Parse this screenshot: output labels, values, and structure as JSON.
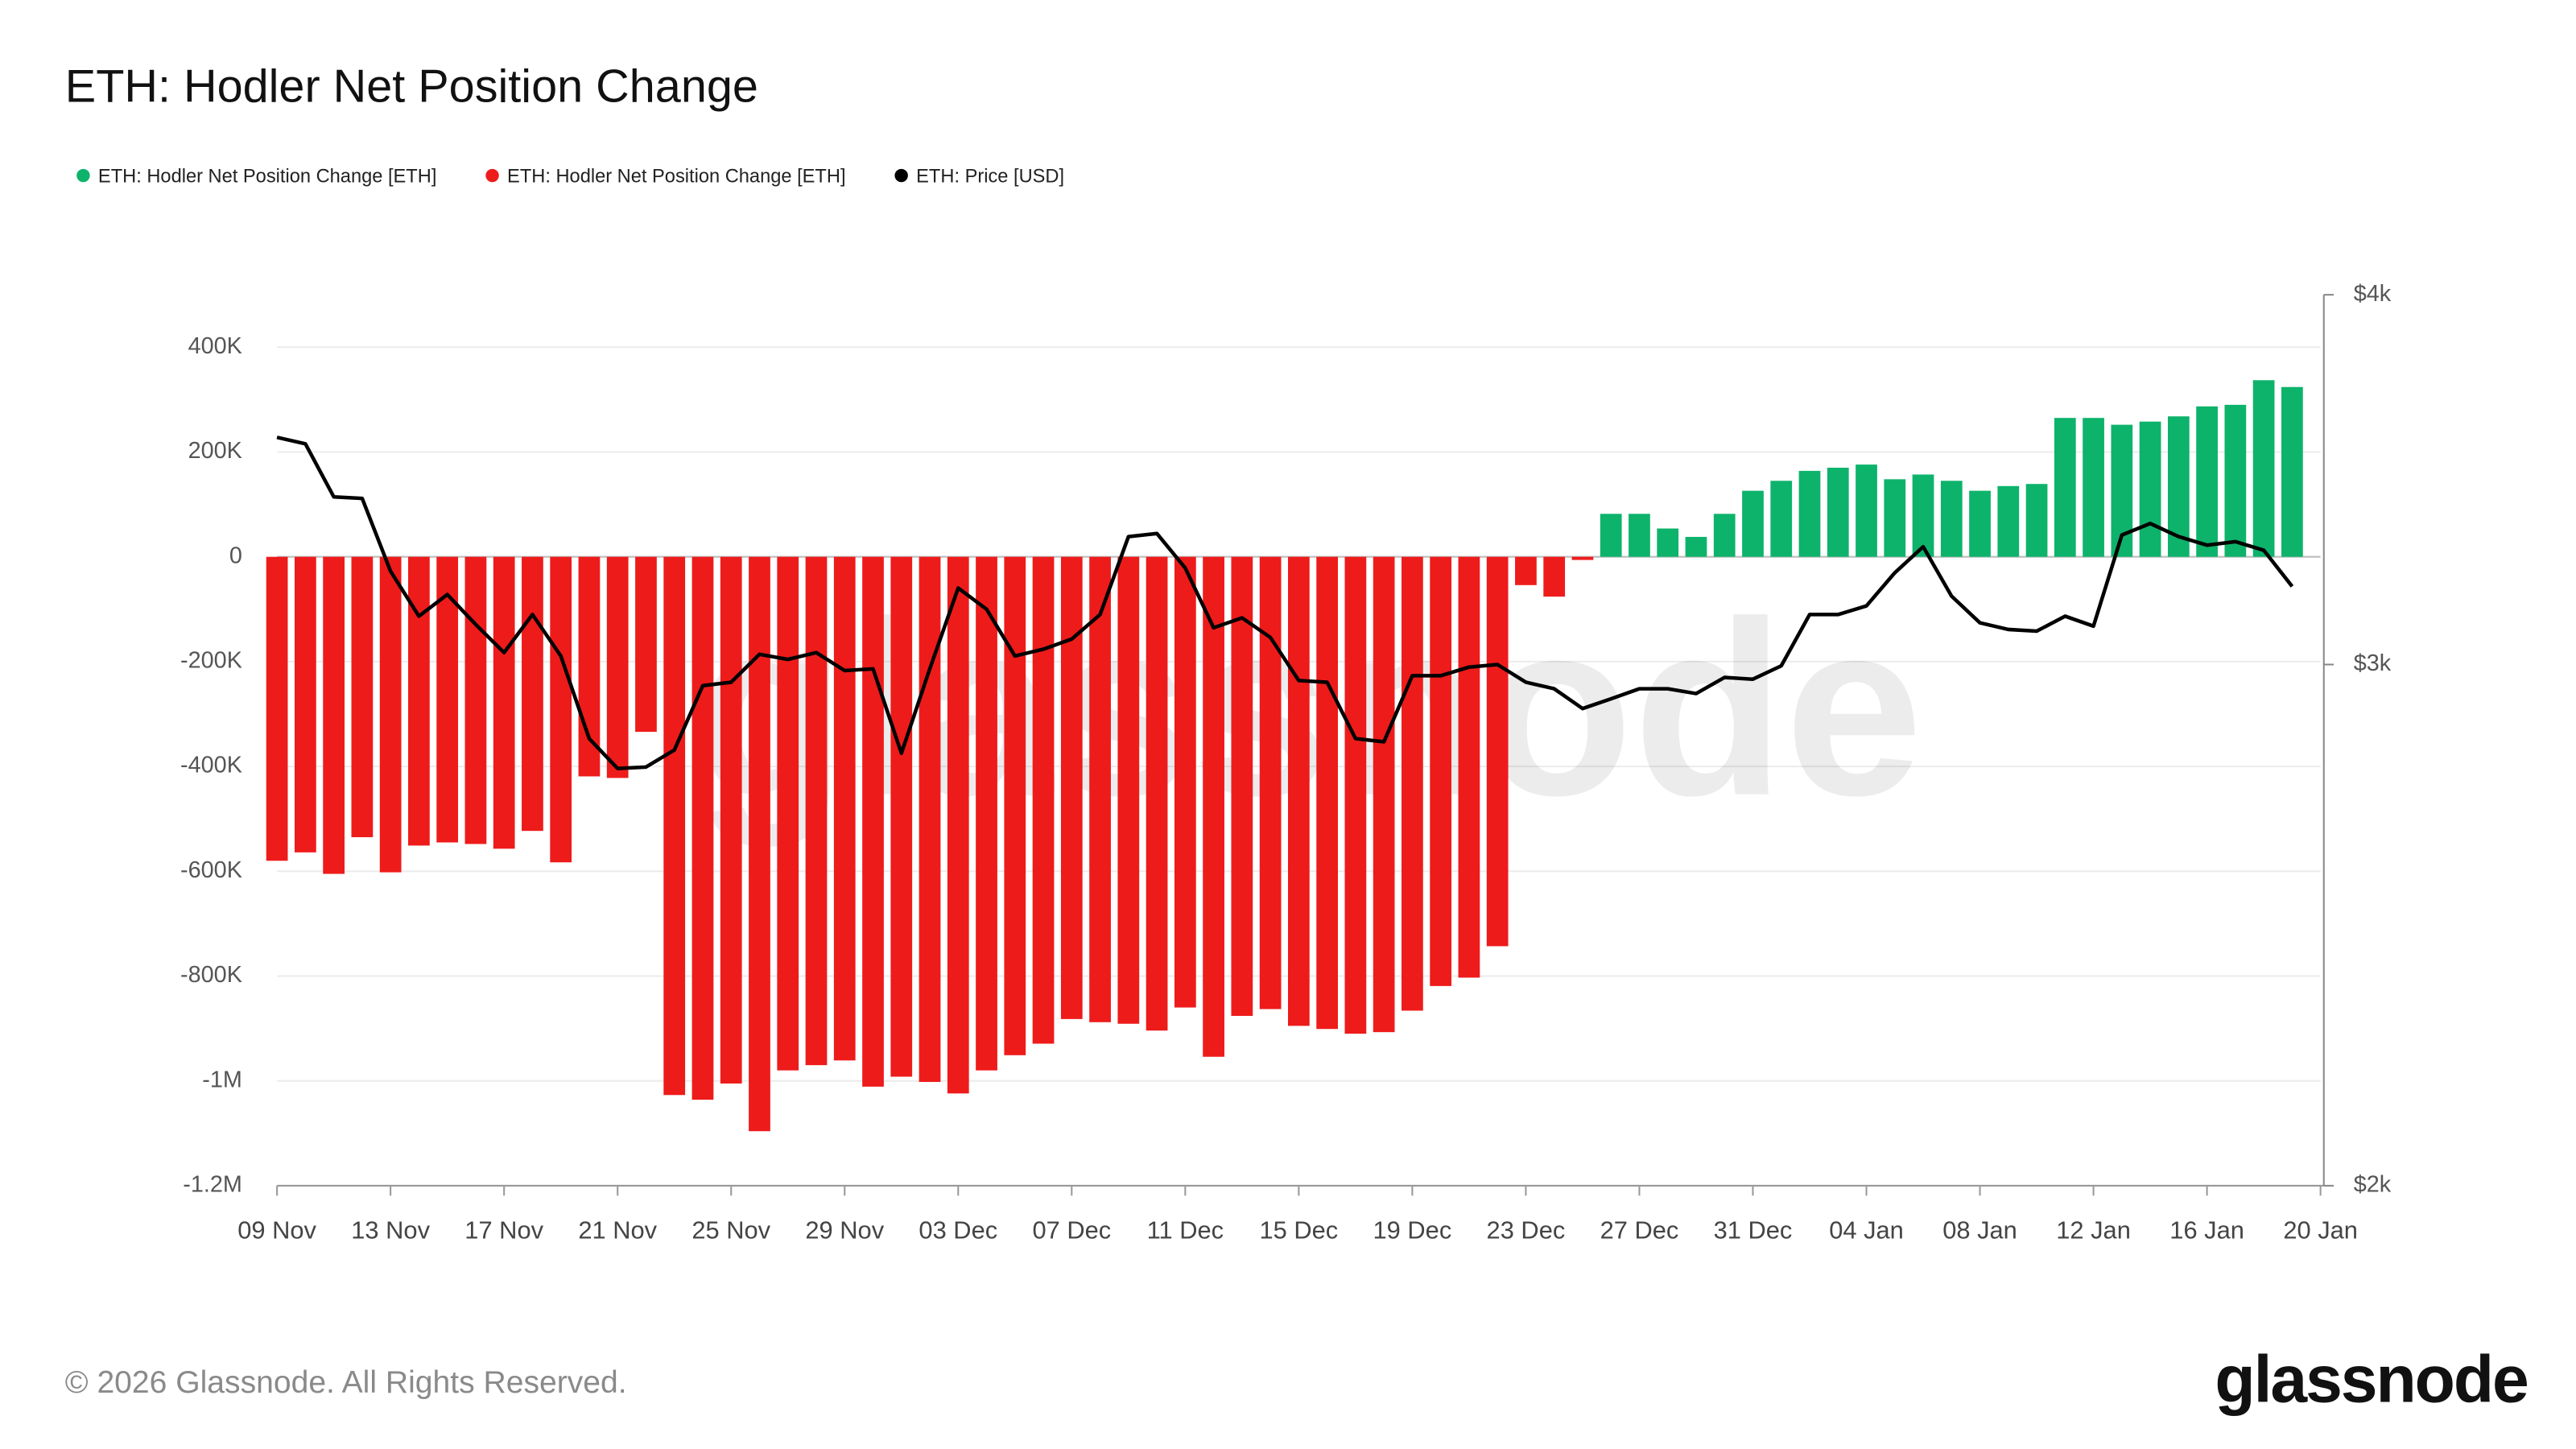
{
  "chart_data": {
    "type": "bar",
    "title": "ETH: Hodler Net Position Change",
    "watermark": "glassnode",
    "footer": "© 2026 Glassnode. All Rights Reserved.",
    "logo": "glassnode",
    "x": [
      "09 Nov",
      "10 Nov",
      "11 Nov",
      "12 Nov",
      "13 Nov",
      "14 Nov",
      "15 Nov",
      "16 Nov",
      "17 Nov",
      "18 Nov",
      "19 Nov",
      "20 Nov",
      "21 Nov",
      "22 Nov",
      "23 Nov",
      "24 Nov",
      "25 Nov",
      "26 Nov",
      "27 Nov",
      "28 Nov",
      "29 Nov",
      "30 Nov",
      "01 Dec",
      "02 Dec",
      "03 Dec",
      "04 Dec",
      "05 Dec",
      "06 Dec",
      "07 Dec",
      "08 Dec",
      "09 Dec",
      "10 Dec",
      "11 Dec",
      "12 Dec",
      "13 Dec",
      "14 Dec",
      "15 Dec",
      "16 Dec",
      "17 Dec",
      "18 Dec",
      "19 Dec",
      "20 Dec",
      "21 Dec",
      "22 Dec",
      "23 Dec",
      "24 Dec",
      "25 Dec",
      "26 Dec",
      "27 Dec",
      "28 Dec",
      "29 Dec",
      "30 Dec",
      "31 Dec",
      "01 Jan",
      "02 Jan",
      "03 Jan",
      "04 Jan",
      "05 Jan",
      "06 Jan",
      "07 Jan",
      "08 Jan",
      "09 Jan",
      "10 Jan",
      "11 Jan",
      "12 Jan",
      "13 Jan",
      "14 Jan",
      "15 Jan",
      "16 Jan",
      "17 Jan",
      "18 Jan",
      "19 Jan"
    ],
    "xlim": [
      "09 Nov",
      "20 Jan"
    ],
    "xticks": [
      "09 Nov",
      "13 Nov",
      "17 Nov",
      "21 Nov",
      "25 Nov",
      "29 Nov",
      "03 Dec",
      "07 Dec",
      "11 Dec",
      "15 Dec",
      "19 Dec",
      "23 Dec",
      "27 Dec",
      "31 Dec",
      "04 Jan",
      "08 Jan",
      "12 Jan",
      "16 Jan",
      "20 Jan"
    ],
    "series": [
      {
        "name": "ETH: Hodler Net Position Change [ETH]",
        "color": "#0db36b",
        "values": [
          null,
          null,
          null,
          null,
          null,
          null,
          null,
          null,
          null,
          null,
          null,
          null,
          null,
          null,
          null,
          null,
          null,
          null,
          null,
          null,
          null,
          null,
          null,
          null,
          null,
          null,
          null,
          null,
          null,
          null,
          null,
          null,
          null,
          null,
          null,
          null,
          null,
          null,
          null,
          null,
          null,
          null,
          null,
          null,
          null,
          null,
          null,
          82000,
          82000,
          54000,
          38000,
          82000,
          126000,
          145000,
          164000,
          170000,
          176000,
          148000,
          157000,
          145000,
          126000,
          135000,
          139000,
          265000,
          265000,
          252000,
          258000,
          268000,
          287000,
          290000,
          337000,
          324000
        ]
      },
      {
        "name": "ETH: Hodler Net Position Change [ETH]",
        "color": "#ee1b1b",
        "values": [
          -580000,
          -564000,
          -605000,
          -535000,
          -602000,
          -551000,
          -545000,
          -548000,
          -557000,
          -523000,
          -583000,
          -419000,
          -422000,
          -334000,
          -1027000,
          -1036000,
          -1005000,
          -1096000,
          -980000,
          -970000,
          -961000,
          -1011000,
          -992000,
          -1002000,
          -1024000,
          -980000,
          -951000,
          -929000,
          -882000,
          -888000,
          -891000,
          -904000,
          -860000,
          -954000,
          -876000,
          -863000,
          -895000,
          -901000,
          -910000,
          -907000,
          -866000,
          -819000,
          -803000,
          -743000,
          -54000,
          -76000,
          -6000,
          null,
          null,
          null,
          null,
          null,
          null,
          null,
          null,
          null,
          null,
          null,
          null,
          null,
          null,
          null,
          null,
          null,
          null,
          null,
          null,
          null,
          null,
          null,
          null,
          null
        ]
      },
      {
        "name": "ETH: Price [USD]",
        "color": "#000000",
        "type": "line",
        "axis": "y2",
        "values": [
          3580,
          3562,
          3418,
          3414,
          3226,
          3115,
          3168,
          3095,
          3028,
          3119,
          3020,
          2832,
          2767,
          2770,
          2807,
          2951,
          2959,
          3024,
          3012,
          3028,
          2986,
          2990,
          2800,
          2990,
          3184,
          3132,
          3020,
          3036,
          3060,
          3119,
          3314,
          3322,
          3234,
          3087,
          3111,
          3064,
          2963,
          2959,
          2832,
          2825,
          2974,
          2974,
          2994,
          3000,
          2959,
          2944,
          2899,
          2921,
          2944,
          2944,
          2933,
          2970,
          2966,
          2997,
          3119,
          3119,
          3140,
          3222,
          3288,
          3164,
          3099,
          3083,
          3079,
          3115,
          3091,
          3318,
          3348,
          3314,
          3292,
          3301,
          3279,
          3188
        ]
      }
    ],
    "ylim": [
      -1200000,
      500000
    ],
    "yticks": [
      {
        "value": -1200000,
        "label": "-1.2M"
      },
      {
        "value": -1000000,
        "label": "-1M"
      },
      {
        "value": -800000,
        "label": "-800K"
      },
      {
        "value": -600000,
        "label": "-600K"
      },
      {
        "value": -400000,
        "label": "-400K"
      },
      {
        "value": -200000,
        "label": "-200K"
      },
      0,
      {
        "value": 200000,
        "label": "200K"
      },
      {
        "value": 400000,
        "label": "400K"
      }
    ],
    "y2lim": [
      2000,
      4000
    ],
    "y2_log": true,
    "y2ticks": [
      {
        "value": 2000,
        "label": "$2k"
      },
      {
        "value": 3000,
        "label": "$3k"
      },
      {
        "value": 4000,
        "label": "$4k"
      }
    ],
    "grid": true,
    "legend": "top-left"
  }
}
